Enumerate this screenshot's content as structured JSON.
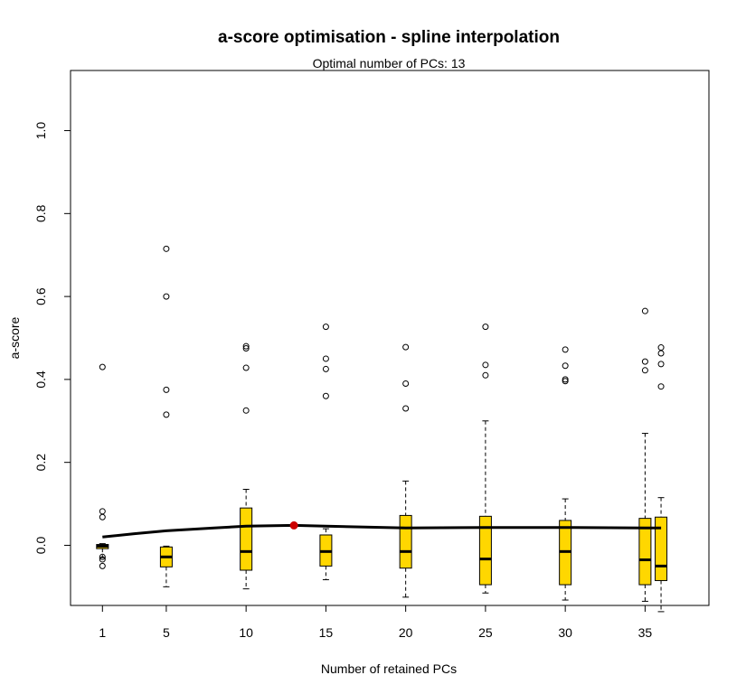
{
  "chart_data": {
    "type": "boxplot",
    "title": "a-score optimisation - spline interpolation",
    "subtitle": "Optimal number of PCs: 13",
    "xlabel": "Number of retained PCs",
    "ylabel": "a-score",
    "xlim": [
      -1,
      39
    ],
    "ylim": [
      -0.145,
      1.145
    ],
    "x_ticks": [
      1,
      5,
      10,
      15,
      20,
      25,
      30,
      35
    ],
    "y_ticks": [
      0.0,
      0.2,
      0.4,
      0.6,
      0.8,
      1.0
    ],
    "box_color": "#FFD700",
    "spline_color": "#000000",
    "optimum_color": "#CC0000",
    "boxes": [
      {
        "x": 1,
        "whisker_low": -0.03,
        "q1": -0.008,
        "median": -0.002,
        "q3": 0.002,
        "whisker_high": 0.004,
        "outliers": [
          0.43,
          0.082,
          0.068,
          -0.028,
          -0.034,
          -0.05
        ]
      },
      {
        "x": 5,
        "whisker_low": -0.1,
        "q1": -0.052,
        "median": -0.028,
        "q3": -0.004,
        "whisker_high": -0.002,
        "outliers": [
          0.715,
          0.6,
          0.375,
          0.315
        ]
      },
      {
        "x": 10,
        "whisker_low": -0.105,
        "q1": -0.06,
        "median": -0.015,
        "q3": 0.09,
        "whisker_high": 0.135,
        "outliers": [
          0.48,
          0.475,
          0.428,
          0.325
        ]
      },
      {
        "x": 15,
        "whisker_low": -0.083,
        "q1": -0.05,
        "median": -0.015,
        "q3": 0.025,
        "whisker_high": 0.04,
        "outliers": [
          0.527,
          0.45,
          0.425,
          0.36
        ]
      },
      {
        "x": 20,
        "whisker_low": -0.125,
        "q1": -0.055,
        "median": -0.015,
        "q3": 0.072,
        "whisker_high": 0.155,
        "outliers": [
          0.478,
          0.39,
          0.33
        ]
      },
      {
        "x": 25,
        "whisker_low": -0.115,
        "q1": -0.095,
        "median": -0.033,
        "q3": 0.07,
        "whisker_high": 0.3,
        "outliers": [
          0.527,
          0.435,
          0.41
        ]
      },
      {
        "x": 30,
        "whisker_low": -0.132,
        "q1": -0.095,
        "median": -0.015,
        "q3": 0.06,
        "whisker_high": 0.112,
        "outliers": [
          0.472,
          0.433,
          0.4,
          0.396
        ]
      },
      {
        "x": 35,
        "whisker_low": -0.135,
        "q1": -0.095,
        "median": -0.035,
        "q3": 0.065,
        "whisker_high": 0.27,
        "outliers": [
          0.565,
          0.443,
          0.422
        ]
      },
      {
        "x": 36,
        "whisker_low": -0.16,
        "q1": -0.085,
        "median": -0.05,
        "q3": 0.068,
        "whisker_high": 0.115,
        "outliers": [
          0.477,
          0.463,
          0.437,
          0.383
        ]
      }
    ],
    "spline": {
      "x": [
        1,
        3,
        5,
        8,
        10,
        13,
        15,
        20,
        25,
        30,
        35,
        36
      ],
      "y": [
        0.02,
        0.028,
        0.035,
        0.042,
        0.046,
        0.048,
        0.046,
        0.042,
        0.043,
        0.043,
        0.042,
        0.042
      ]
    },
    "optimum": {
      "x": 13,
      "y": 0.048
    }
  }
}
